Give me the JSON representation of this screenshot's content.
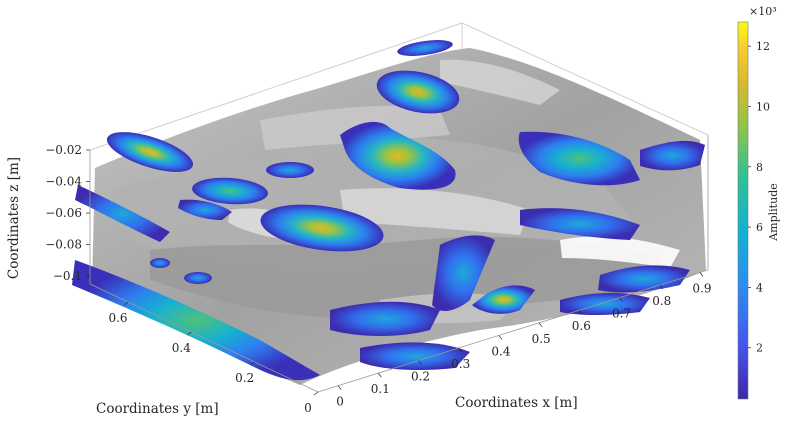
{
  "chart_data": {
    "type": "isosurface-3d",
    "xlabel": "Coordinates x [m]",
    "ylabel": "Coordinates y [m]",
    "zlabel": "Coordinates z [m]",
    "x_ticks": [
      "0",
      "0.1",
      "0.2",
      "0.3",
      "0.4",
      "0.5",
      "0.6",
      "0.7",
      "0.8",
      "0.9"
    ],
    "y_ticks": [
      "0",
      "0.2",
      "0.4",
      "0.6"
    ],
    "z_ticks": [
      "-0.1",
      "-0.08",
      "-0.06",
      "-0.04",
      "-0.02"
    ],
    "xlim": [
      -0.05,
      0.92
    ],
    "ylim": [
      0,
      0.72
    ],
    "zlim": [
      -0.105,
      -0.02
    ],
    "colorbar": {
      "label": "Amplitude",
      "exponent": "×10³",
      "ticks": [
        "2",
        "4",
        "6",
        "8",
        "10",
        "12"
      ],
      "tick_values": [
        2,
        4,
        6,
        8,
        10,
        12
      ],
      "range": [
        0.3,
        12.8
      ],
      "colormap": "parula"
    },
    "surface_color": "#a9a9a9",
    "box": true,
    "grid": false
  }
}
